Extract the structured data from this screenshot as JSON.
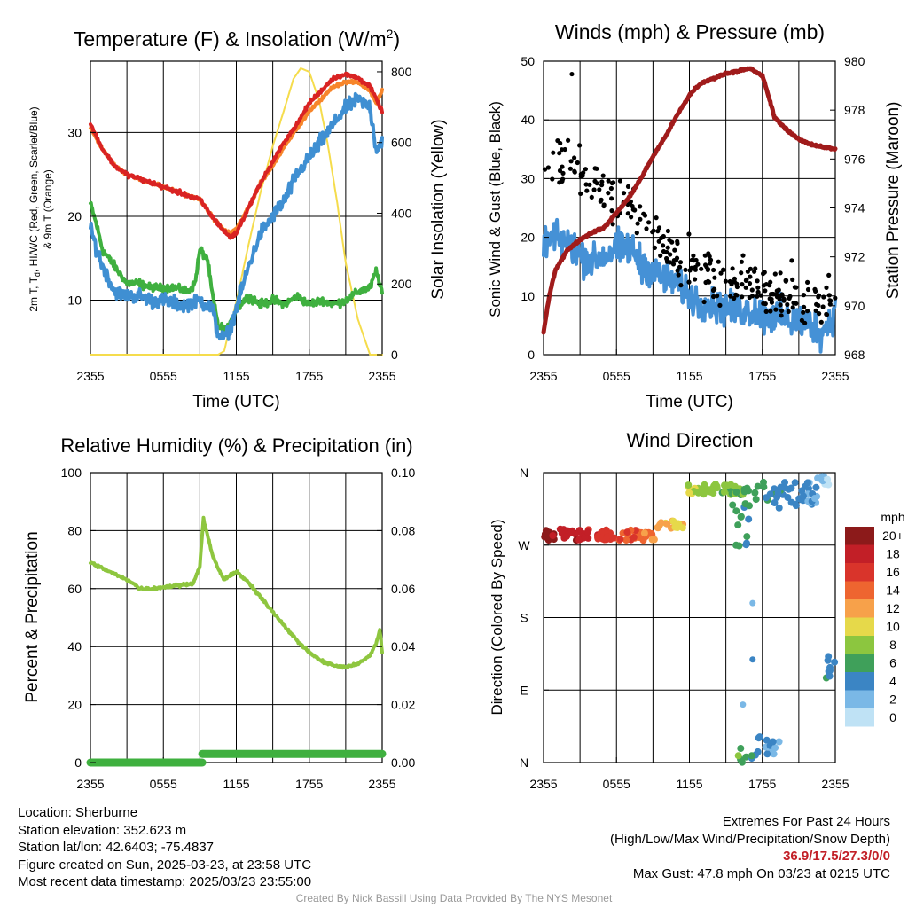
{
  "colors": {
    "temp": "#d92323",
    "dewpoint": "#3f8fd2",
    "windchill": "#3fb03f",
    "temp9m": "#f7852a",
    "insolation": "#f5dc4c",
    "wind": "#4591d6",
    "gust": "#000000",
    "pressure": "#a01b1b",
    "rh": "#8ec63f",
    "precip": "#3fb03f",
    "grid": "#000000"
  },
  "chart_data": [
    {
      "id": "temperature",
      "type": "line",
      "title": "Temperature (F) & Insolation (W/m",
      "title_sup": "2",
      "title_end": ")",
      "xlabel": "Time (UTC)",
      "ylabel_lines": [
        "2m T, T",
        "d",
        ", HI/WC (Red, Green, Scarlet/Blue)",
        "& 9m T (Orange)"
      ],
      "ylabel_right": "Solar Insolation (Yellow)",
      "x_ticks": [
        "2355",
        "0555",
        "1155",
        "1755",
        "2355"
      ],
      "ylim": [
        3.5,
        38.5
      ],
      "y_ticks": [
        10,
        20,
        30
      ],
      "y2lim": [
        0,
        830
      ],
      "y2_ticks": [
        0,
        200,
        400,
        600,
        800
      ],
      "x_range_hours": [
        0,
        24
      ],
      "series": [
        {
          "key": "solar",
          "color_key": "insolation",
          "width": 2,
          "x": [
            0,
            10.5,
            11,
            12,
            13,
            14,
            15,
            16,
            16.7,
            17.3,
            18,
            18.8,
            19.5,
            20.3,
            21,
            22,
            22.5,
            23,
            24
          ],
          "y": [
            0,
            0,
            10,
            150,
            310,
            460,
            590,
            700,
            780,
            810,
            800,
            720,
            600,
            430,
            260,
            100,
            50,
            0,
            0
          ]
        },
        {
          "key": "windchill",
          "color_key": "windchill",
          "width": 4,
          "noise": 0.5,
          "x": [
            0,
            0.5,
            1,
            2,
            3,
            4,
            5,
            6,
            7,
            8,
            8.6,
            9,
            9.6,
            10,
            10.5,
            11,
            11.5,
            12,
            13,
            14,
            15,
            16,
            17,
            18,
            19,
            20,
            21,
            22,
            23,
            23.5,
            24
          ],
          "y": [
            21.5,
            19,
            16,
            14,
            12,
            12,
            11.5,
            11.5,
            11.5,
            11,
            12,
            16,
            15,
            11,
            7,
            6.5,
            7,
            9,
            10.5,
            9.5,
            10,
            9.5,
            10.5,
            9.5,
            10,
            9.5,
            10,
            11,
            11.5,
            13.5,
            11
          ]
        },
        {
          "key": "dewpoint",
          "color_key": "dewpoint",
          "width": 4,
          "noise": 0.9,
          "x": [
            0,
            1,
            2,
            3,
            4,
            5,
            6,
            7,
            8,
            9,
            10,
            10.5,
            11,
            11.5,
            12,
            13,
            14,
            15,
            16,
            17,
            18,
            19,
            20,
            21,
            22,
            23,
            23.5,
            24
          ],
          "y": [
            18.5,
            14,
            11,
            10.5,
            10.5,
            10,
            10,
            9.5,
            9.5,
            10,
            9,
            6,
            5.5,
            6.5,
            9,
            14,
            18,
            20,
            22,
            25,
            27,
            29,
            31,
            33,
            34,
            33,
            28,
            29
          ]
        },
        {
          "key": "temp9m",
          "color_key": "temp9m",
          "width": 4,
          "noise": 0.2,
          "x": [
            0,
            1,
            2,
            3,
            4,
            5,
            6,
            7,
            8,
            9,
            10,
            11,
            11.5,
            12,
            13,
            14,
            15,
            16,
            17,
            18,
            19,
            20,
            21,
            22,
            23,
            23.5,
            24
          ],
          "y": [
            30.5,
            28,
            26,
            25,
            24.5,
            24,
            23.5,
            23,
            22.5,
            22,
            20,
            18.3,
            18,
            18.5,
            21,
            24,
            26,
            28.5,
            30.5,
            32.5,
            34,
            35.5,
            36,
            36,
            35,
            33.5,
            35
          ]
        },
        {
          "key": "temp",
          "color_key": "temp",
          "width": 4,
          "noise": 0.25,
          "x": [
            0,
            1,
            2,
            3,
            4,
            5,
            6,
            7,
            8,
            9,
            10,
            11,
            11.5,
            12,
            13,
            14,
            15,
            16,
            17,
            18,
            19,
            20,
            21,
            22,
            23,
            23.5,
            24
          ],
          "y": [
            31,
            28,
            26,
            25,
            24.5,
            24,
            23.5,
            23,
            22.5,
            22,
            20,
            18.2,
            17.5,
            18,
            21,
            24,
            26.5,
            29,
            31,
            33.5,
            35,
            36.5,
            36.9,
            36.5,
            35.5,
            34,
            32.5
          ]
        }
      ]
    },
    {
      "id": "winds",
      "type": "line",
      "title": "Winds (mph) & Pressure (mb)",
      "xlabel": "Time (UTC)",
      "ylabel": "Sonic Wind & Gust (Blue, Black)",
      "ylabel_right": "Station Pressure (Maroon)",
      "x_ticks": [
        "2355",
        "0555",
        "1155",
        "1755",
        "2355"
      ],
      "ylim": [
        0,
        50
      ],
      "y_ticks": [
        0,
        10,
        20,
        30,
        40,
        50
      ],
      "y2lim": [
        968,
        980
      ],
      "y2_ticks": [
        968,
        970,
        972,
        974,
        976,
        978,
        980
      ],
      "x_range_hours": [
        0,
        24
      ],
      "series": [
        {
          "key": "sonic_wind",
          "color_key": "wind",
          "width": 4,
          "noise": 3.2,
          "x": [
            0,
            1,
            2,
            3,
            4,
            5,
            6,
            7,
            8,
            9,
            10,
            11,
            12,
            13,
            14,
            15,
            16,
            17,
            18,
            19,
            20,
            21,
            22,
            23,
            24
          ],
          "y": [
            19,
            20,
            19,
            17,
            16,
            17,
            18,
            18,
            16,
            14,
            13,
            12,
            10,
            9,
            8.5,
            8,
            7.5,
            7.5,
            7,
            6.5,
            6,
            5.5,
            5,
            4,
            7
          ]
        },
        {
          "key": "pressure",
          "color_key": "pressure",
          "width": 5,
          "noise": 0.05,
          "x": [
            0,
            0.5,
            1,
            2,
            3,
            4,
            5,
            6,
            7,
            8,
            9,
            10,
            11,
            12,
            12.5,
            13,
            14,
            15,
            16,
            17,
            18,
            18.5,
            19,
            20,
            21,
            22,
            23,
            24
          ],
          "y": [
            968.9,
            970.5,
            971.5,
            972.3,
            972.7,
            973,
            973.2,
            973.8,
            974.4,
            975.2,
            976.1,
            976.9,
            977.8,
            978.6,
            978.9,
            979.1,
            979.3,
            979.5,
            979.6,
            979.7,
            979.4,
            978.6,
            977.7,
            977.2,
            976.8,
            976.6,
            976.5,
            976.4
          ]
        }
      ],
      "gust_points": {
        "color_key": "gust",
        "count": 260,
        "spread": 5.5,
        "x": [
          0,
          1,
          2,
          3,
          4,
          5,
          6,
          7,
          8,
          9,
          10,
          11,
          12,
          13,
          14,
          15,
          16,
          17,
          18,
          19,
          20,
          21,
          22,
          23,
          24
        ],
        "y": [
          31,
          32,
          33,
          31,
          29,
          28,
          26,
          25,
          23,
          21,
          19,
          17,
          15,
          14,
          13,
          12.5,
          12,
          11.5,
          11,
          10.5,
          10,
          9.5,
          9,
          8,
          10
        ],
        "max": {
          "x": 2.33,
          "y": 47.8
        }
      }
    },
    {
      "id": "humidity",
      "type": "line",
      "title": "Relative Humidity (%) & Precipitation (in)",
      "ylabel": "Percent & Precipitation",
      "x_ticks": [
        "2355",
        "0555",
        "1155",
        "1755",
        "2355"
      ],
      "ylim": [
        0,
        100
      ],
      "y_ticks": [
        0,
        20,
        40,
        60,
        80,
        100
      ],
      "y2lim": [
        0,
        0.1
      ],
      "y2_ticks": [
        "0.00",
        "0.02",
        "0.04",
        "0.06",
        "0.08",
        "0.10"
      ],
      "x_range_hours": [
        0,
        24
      ],
      "series": [
        {
          "key": "rh",
          "color_key": "rh",
          "width": 4,
          "noise": 0.5,
          "x": [
            0,
            1,
            2,
            3,
            3.5,
            4,
            5,
            6,
            7,
            8,
            8.5,
            9,
            9.3,
            9.6,
            10,
            10.5,
            11,
            12,
            13,
            14,
            15,
            16,
            17,
            18,
            19,
            20,
            20.5,
            21,
            22,
            23,
            23.5,
            23.8,
            24
          ],
          "y": [
            69,
            67,
            65,
            63,
            62,
            60,
            60,
            60.5,
            61,
            61.5,
            62,
            68,
            84,
            79,
            72,
            67,
            63,
            66,
            62,
            57,
            52,
            47,
            42,
            38,
            35,
            33.5,
            33,
            33,
            34,
            37,
            41,
            46,
            38
          ]
        },
        {
          "key": "precip_left",
          "color_key": "precip",
          "width": 9,
          "x": [
            0,
            9.2
          ],
          "y": [
            0,
            0
          ]
        },
        {
          "key": "precip_right",
          "color_key": "precip",
          "width": 9,
          "x": [
            9.2,
            24
          ],
          "y": [
            0.003,
            0.003
          ],
          "axis": "right"
        }
      ]
    },
    {
      "id": "wind_direction",
      "type": "scatter",
      "title": "Wind Direction",
      "ylabel": "Direction (Colored By Speed)",
      "x_ticks": [
        "2355",
        "0555",
        "1155",
        "1755",
        "2355"
      ],
      "y_ticks": [
        "N",
        "E",
        "S",
        "W",
        "N"
      ],
      "ylim": [
        0,
        360
      ],
      "x_range_hours": [
        0,
        24
      ],
      "legend_title": "mph",
      "legend_labels": [
        "20+",
        "18",
        "16",
        "14",
        "12",
        "10",
        "8",
        "6",
        "4",
        "2",
        "0"
      ],
      "legend_colors": [
        "#8c1a1a",
        "#c21f27",
        "#d9342b",
        "#ee6530",
        "#f7a14a",
        "#e6d94a",
        "#8cc63f",
        "#3fa05a",
        "#3b85c4",
        "#7ab8e6",
        "#bfe2f5"
      ],
      "clusters": [
        {
          "x0": 0,
          "x1": 9.3,
          "dir0": 276,
          "dir1": 290,
          "speed0": 20,
          "speed1": 13,
          "n": 90
        },
        {
          "x0": 9.3,
          "x1": 11.7,
          "dir0": 290,
          "dir1": 300,
          "speed0": 12,
          "speed1": 10,
          "n": 18
        },
        {
          "x0": 11.7,
          "x1": 16.5,
          "dir0": 332,
          "dir1": 346,
          "speed0": 9,
          "speed1": 7,
          "n": 45
        },
        {
          "x0": 15.5,
          "x1": 17.5,
          "dir0": 268,
          "dir1": 320,
          "speed0": 6,
          "speed1": 4,
          "n": 12
        },
        {
          "x0": 16.5,
          "x1": 22.5,
          "dir0": 316,
          "dir1": 350,
          "speed0": 6,
          "speed1": 3,
          "n": 55
        },
        {
          "x0": 22.5,
          "x1": 23.5,
          "dir0": 345,
          "dir1": 356,
          "speed0": 2,
          "speed1": 1,
          "n": 10
        },
        {
          "x0": 16,
          "x1": 17.5,
          "dir0": 0,
          "dir1": 18,
          "speed0": 7,
          "speed1": 4,
          "n": 8
        },
        {
          "x0": 17.5,
          "x1": 19.8,
          "dir0": 5,
          "dir1": 32,
          "speed0": 4,
          "speed1": 2,
          "n": 12
        },
        {
          "x0": 23.2,
          "x1": 24,
          "dir0": 105,
          "dir1": 134,
          "speed0": 5,
          "speed1": 2,
          "n": 8
        }
      ],
      "points": [
        {
          "x": 17.2,
          "dir": 198,
          "speed": 3
        },
        {
          "x": 17.2,
          "dir": 128,
          "speed": 4
        },
        {
          "x": 16.4,
          "dir": 72,
          "speed": 2
        }
      ]
    }
  ],
  "station": {
    "location": "Location: Sherburne",
    "elevation": "Station elevation: 352.623 m",
    "latlon": "Station lat/lon: 42.6403; -75.4837",
    "created": "Figure created on Sun, 2025-03-23, at 23:58 UTC",
    "recent": "Most recent data timestamp: 2025/03/23 23:55:00"
  },
  "extremes": {
    "heading": "Extremes For Past 24 Hours",
    "subheading": "(High/Low/Max Wind/Precipitation/Snow Depth)",
    "values": "36.9/17.5/27.3/0/0",
    "max_gust": "Max Gust: 47.8 mph On 03/23 at 0215 UTC"
  },
  "credit": "Created By Nick Bassill Using Data Provided By The NYS Mesonet"
}
